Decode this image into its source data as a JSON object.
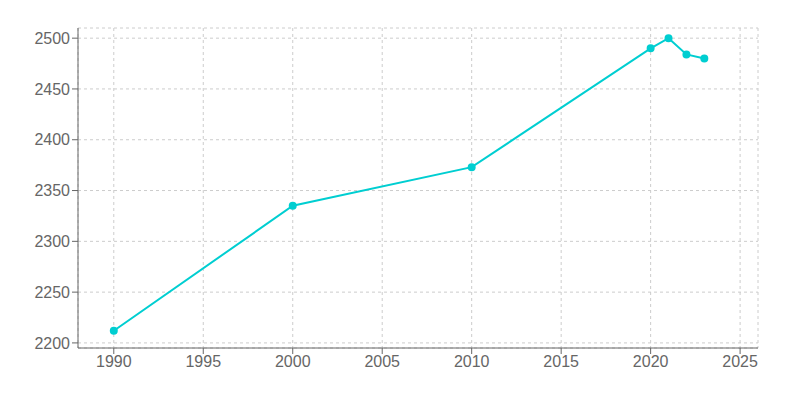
{
  "chart_data": {
    "type": "line",
    "x": [
      1990,
      2000,
      2010,
      2020,
      2021,
      2022,
      2023
    ],
    "values": [
      2212,
      2335,
      2373,
      2490,
      2500,
      2484,
      2480
    ],
    "color": "#00CED1",
    "marker": "circle",
    "xlim": [
      1988,
      2026
    ],
    "xticks": [
      1990,
      1995,
      2000,
      2005,
      2010,
      2015,
      2020,
      2025
    ],
    "ylim": [
      2195,
      2510
    ],
    "yticks": [
      2200,
      2250,
      2300,
      2350,
      2400,
      2450,
      2500
    ],
    "grid": true
  }
}
